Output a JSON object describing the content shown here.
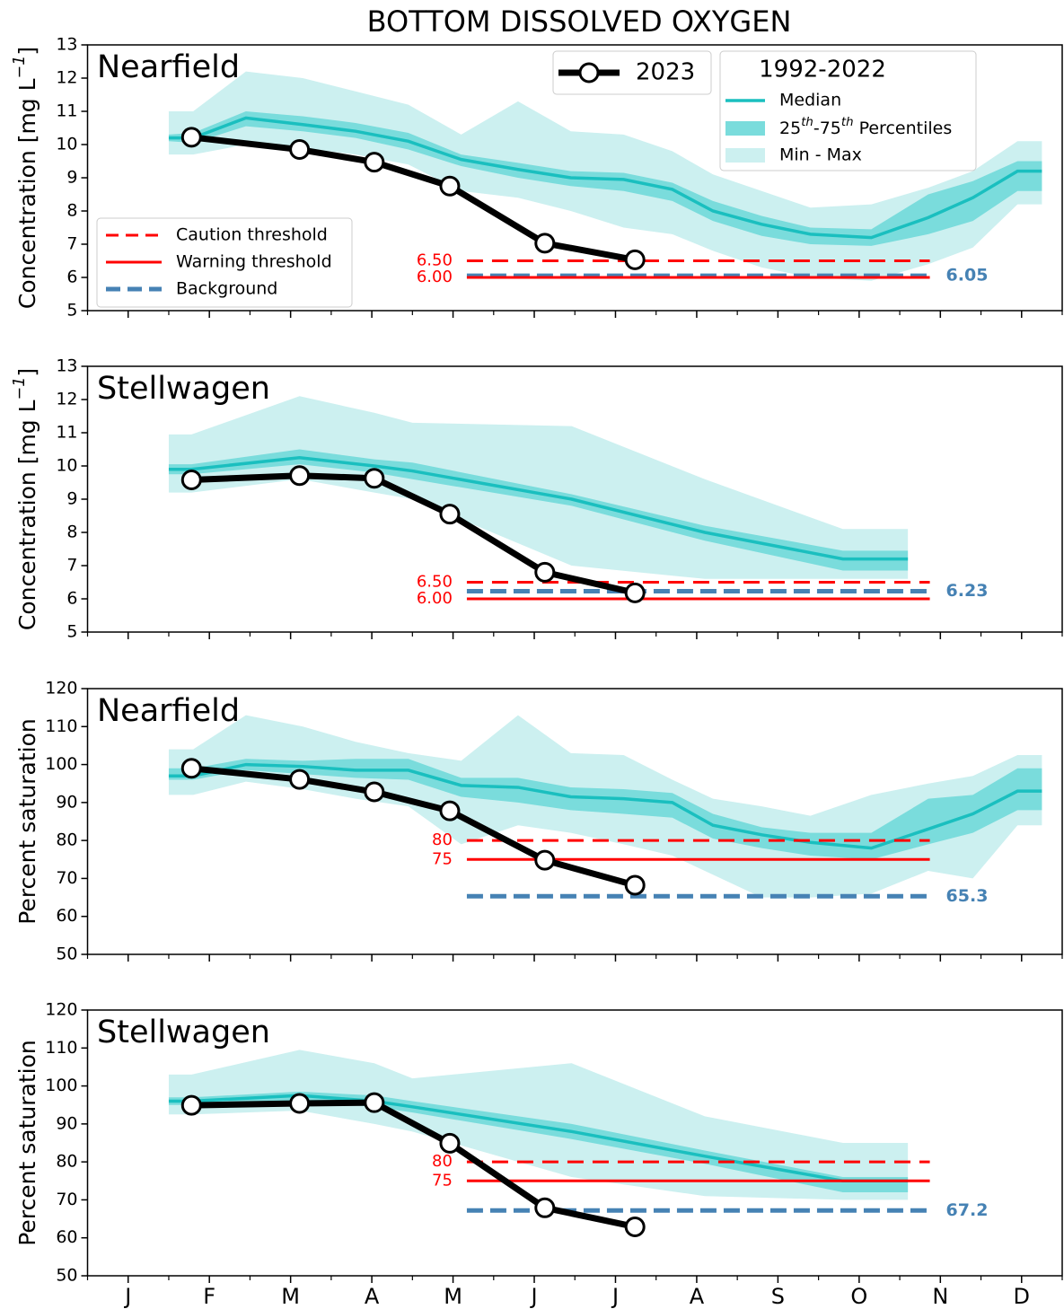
{
  "title": "BOTTOM DISSOLVED OXYGEN",
  "xlim": [
    0,
    12
  ],
  "xticks": [
    {
      "value": 0.5,
      "label": "J"
    },
    {
      "value": 1.5,
      "label": "F"
    },
    {
      "value": 2.5,
      "label": "M"
    },
    {
      "value": 3.5,
      "label": "A"
    },
    {
      "value": 4.5,
      "label": "M"
    },
    {
      "value": 5.5,
      "label": "J"
    },
    {
      "value": 6.5,
      "label": "J"
    },
    {
      "value": 7.5,
      "label": "A"
    },
    {
      "value": 8.5,
      "label": "S"
    },
    {
      "value": 9.5,
      "label": "O"
    },
    {
      "value": 10.5,
      "label": "N"
    },
    {
      "value": 11.5,
      "label": "D"
    }
  ],
  "xminorticks": [
    0,
    1,
    2,
    3,
    4,
    5,
    6,
    7,
    8,
    9,
    10,
    11,
    12
  ],
  "chart_data": [
    {
      "type": "line",
      "title": "Nearfield",
      "ylabel": "Concentration [mg L−1]",
      "ylim": [
        5,
        13
      ],
      "yticks": [
        5,
        6,
        7,
        8,
        9,
        10,
        11,
        12,
        13
      ],
      "series": [
        {
          "name": "2023",
          "color": "#000000",
          "x": [
            1.28,
            2.61,
            3.53,
            4.46,
            5.63,
            6.74
          ],
          "values": [
            10.22,
            9.85,
            9.47,
            8.75,
            7.03,
            6.53
          ]
        }
      ],
      "climatology": {
        "name": "1992-2022",
        "x": [
          1.0,
          1.3,
          1.95,
          2.65,
          3.3,
          3.95,
          4.6,
          5.3,
          5.95,
          6.6,
          7.2,
          7.7,
          8.3,
          8.9,
          9.65,
          10.35,
          10.9,
          11.45,
          11.75
        ],
        "median": {
          "name": "Median",
          "color": "#1abfbf",
          "values": [
            10.2,
            10.2,
            10.8,
            10.6,
            10.4,
            10.1,
            9.55,
            9.25,
            9.0,
            8.95,
            8.65,
            8.0,
            7.6,
            7.3,
            7.2,
            7.8,
            8.4,
            9.2,
            9.2
          ]
        },
        "iqr": {
          "name": "25th-75th Percentiles",
          "color": "#7adcdc",
          "low": [
            10.1,
            10.05,
            10.55,
            10.4,
            10.2,
            9.85,
            9.35,
            9.0,
            8.75,
            8.6,
            8.3,
            7.7,
            7.25,
            7.0,
            6.95,
            7.3,
            7.7,
            8.6,
            8.6
          ],
          "high": [
            10.3,
            10.35,
            11.0,
            10.85,
            10.65,
            10.35,
            9.7,
            9.45,
            9.2,
            9.15,
            8.85,
            8.3,
            7.85,
            7.5,
            7.45,
            8.5,
            8.9,
            9.5,
            9.5
          ]
        },
        "range": {
          "name": "Min - Max",
          "color": "#ccf0f0",
          "low": [
            9.7,
            9.7,
            10.0,
            9.9,
            9.7,
            9.4,
            8.6,
            8.4,
            8.0,
            7.5,
            7.3,
            6.8,
            6.3,
            6.0,
            5.9,
            6.4,
            6.9,
            8.2,
            8.2
          ],
          "high": [
            11.0,
            11.0,
            12.2,
            12.0,
            11.6,
            11.2,
            10.3,
            11.3,
            10.4,
            10.3,
            9.8,
            9.1,
            8.6,
            8.1,
            8.2,
            8.7,
            9.2,
            10.1,
            10.1
          ]
        }
      },
      "threshold_x": [
        4.67,
        10.37
      ],
      "caution": {
        "name": "Caution threshold",
        "value": 6.5,
        "label": "6.50",
        "color": "#ff0000"
      },
      "warning": {
        "name": "Warning threshold",
        "value": 6.0,
        "label": "6.00",
        "color": "#ff0000"
      },
      "background": {
        "name": "Background",
        "value": 6.05,
        "color": "#4682b4"
      }
    },
    {
      "type": "line",
      "title": "Stellwagen",
      "ylabel": "Concentration [mg L−1]",
      "ylim": [
        5,
        13
      ],
      "yticks": [
        5,
        6,
        7,
        8,
        9,
        10,
        11,
        12,
        13
      ],
      "series": [
        {
          "color": "#000000",
          "x": [
            1.28,
            2.61,
            3.53,
            4.46,
            5.63,
            6.74
          ],
          "values": [
            9.58,
            9.71,
            9.63,
            8.55,
            6.8,
            6.18
          ]
        }
      ],
      "climatology": {
        "x": [
          1.0,
          1.28,
          2.61,
          3.53,
          4.0,
          5.96,
          7.6,
          9.3,
          10.1
        ],
        "median": {
          "color": "#1abfbf",
          "values": [
            9.9,
            9.9,
            10.25,
            10.0,
            9.85,
            9.0,
            8.0,
            7.2,
            7.2
          ]
        },
        "iqr": {
          "color": "#7adcdc",
          "low": [
            9.75,
            9.75,
            10.05,
            9.8,
            9.6,
            8.8,
            7.75,
            6.85,
            6.85
          ],
          "high": [
            10.05,
            10.05,
            10.5,
            10.2,
            10.1,
            9.15,
            8.2,
            7.45,
            7.45
          ]
        },
        "range": {
          "color": "#ccf0f0",
          "low": [
            9.2,
            9.2,
            9.6,
            9.2,
            9.0,
            7.0,
            6.6,
            6.6,
            6.6
          ],
          "high": [
            10.95,
            10.95,
            12.1,
            11.6,
            11.3,
            11.2,
            9.6,
            8.1,
            8.1
          ]
        }
      },
      "threshold_x": [
        4.67,
        10.37
      ],
      "caution": {
        "value": 6.5,
        "label": "6.50",
        "color": "#ff0000"
      },
      "warning": {
        "value": 6.0,
        "label": "6.00",
        "color": "#ff0000"
      },
      "background": {
        "value": 6.23,
        "color": "#4682b4"
      }
    },
    {
      "type": "line",
      "title": "Nearfield",
      "ylabel": "Percent saturation",
      "ylim": [
        50,
        120
      ],
      "yticks": [
        50,
        60,
        70,
        80,
        90,
        100,
        110,
        120
      ],
      "series": [
        {
          "color": "#000000",
          "x": [
            1.28,
            2.61,
            3.53,
            4.46,
            5.63,
            6.74
          ],
          "values": [
            99.0,
            96.1,
            92.8,
            87.8,
            74.8,
            68.2
          ]
        }
      ],
      "climatology": {
        "x": [
          1.0,
          1.3,
          1.95,
          2.65,
          3.3,
          3.95,
          4.6,
          5.3,
          5.95,
          6.6,
          7.2,
          7.7,
          8.3,
          8.9,
          9.65,
          10.35,
          10.9,
          11.45,
          11.75
        ],
        "median": {
          "color": "#1abfbf",
          "values": [
            97,
            97,
            100,
            99.5,
            98.5,
            98.5,
            94.5,
            94,
            91.5,
            91,
            90,
            84,
            81.5,
            79.5,
            78,
            83,
            87,
            93,
            93
          ]
        },
        "iqr": {
          "color": "#7adcdc",
          "low": [
            96,
            96,
            98.5,
            97.5,
            96.5,
            96,
            91.5,
            90,
            88,
            87,
            86,
            80.5,
            78,
            76,
            75,
            79,
            82,
            88,
            88
          ],
          "high": [
            99,
            99,
            101.5,
            101,
            101.5,
            101.5,
            96.5,
            96.5,
            94,
            93.5,
            92.5,
            87,
            83.5,
            82,
            82,
            91,
            92,
            99,
            99
          ]
        },
        "range": {
          "color": "#ccf0f0",
          "low": [
            92,
            92,
            95.5,
            93.5,
            91,
            89,
            79,
            84,
            82,
            79,
            76,
            71,
            65,
            65,
            66,
            72,
            70,
            84,
            84
          ],
          "high": [
            104,
            104,
            113,
            110,
            106,
            103,
            101,
            113,
            103,
            102.5,
            96,
            91,
            89,
            86.5,
            92,
            95,
            97,
            102.5,
            102.5
          ]
        }
      },
      "threshold_x": [
        4.67,
        10.37
      ],
      "caution": {
        "value": 80,
        "color": "#ff0000"
      },
      "warning": {
        "value": 75,
        "color": "#ff0000"
      },
      "background": {
        "value": 65.3,
        "color": "#4682b4"
      }
    },
    {
      "type": "line",
      "title": "Stellwagen",
      "ylabel": "Percent saturation",
      "ylim": [
        50,
        120
      ],
      "yticks": [
        50,
        60,
        70,
        80,
        90,
        100,
        110,
        120
      ],
      "series": [
        {
          "color": "#000000",
          "x": [
            1.28,
            2.61,
            3.53,
            4.46,
            5.63,
            6.74
          ],
          "values": [
            94.9,
            95.4,
            95.6,
            84.9,
            67.9,
            62.9
          ]
        }
      ],
      "climatology": {
        "x": [
          1.0,
          1.28,
          2.61,
          3.53,
          4.0,
          5.96,
          7.6,
          9.3,
          10.1
        ],
        "median": {
          "color": "#1abfbf",
          "values": [
            96,
            96,
            97.5,
            96,
            94.5,
            88,
            81.5,
            75,
            75
          ]
        },
        "iqr": {
          "color": "#7adcdc",
          "low": [
            95,
            95,
            96,
            94.5,
            93,
            86,
            79.5,
            72,
            72
          ],
          "high": [
            97,
            97,
            98.5,
            97.5,
            96,
            90,
            83,
            76,
            76
          ]
        },
        "range": {
          "color": "#ccf0f0",
          "low": [
            92.5,
            92.5,
            93.5,
            90,
            88,
            76,
            71,
            70,
            70
          ],
          "high": [
            103,
            103,
            109.5,
            106,
            102,
            106,
            92,
            85,
            85
          ]
        }
      },
      "threshold_x": [
        4.67,
        10.37
      ],
      "caution": {
        "value": 80,
        "color": "#ff0000"
      },
      "warning": {
        "value": 75,
        "color": "#ff0000"
      },
      "background": {
        "value": 67.2,
        "color": "#4682b4"
      }
    }
  ]
}
